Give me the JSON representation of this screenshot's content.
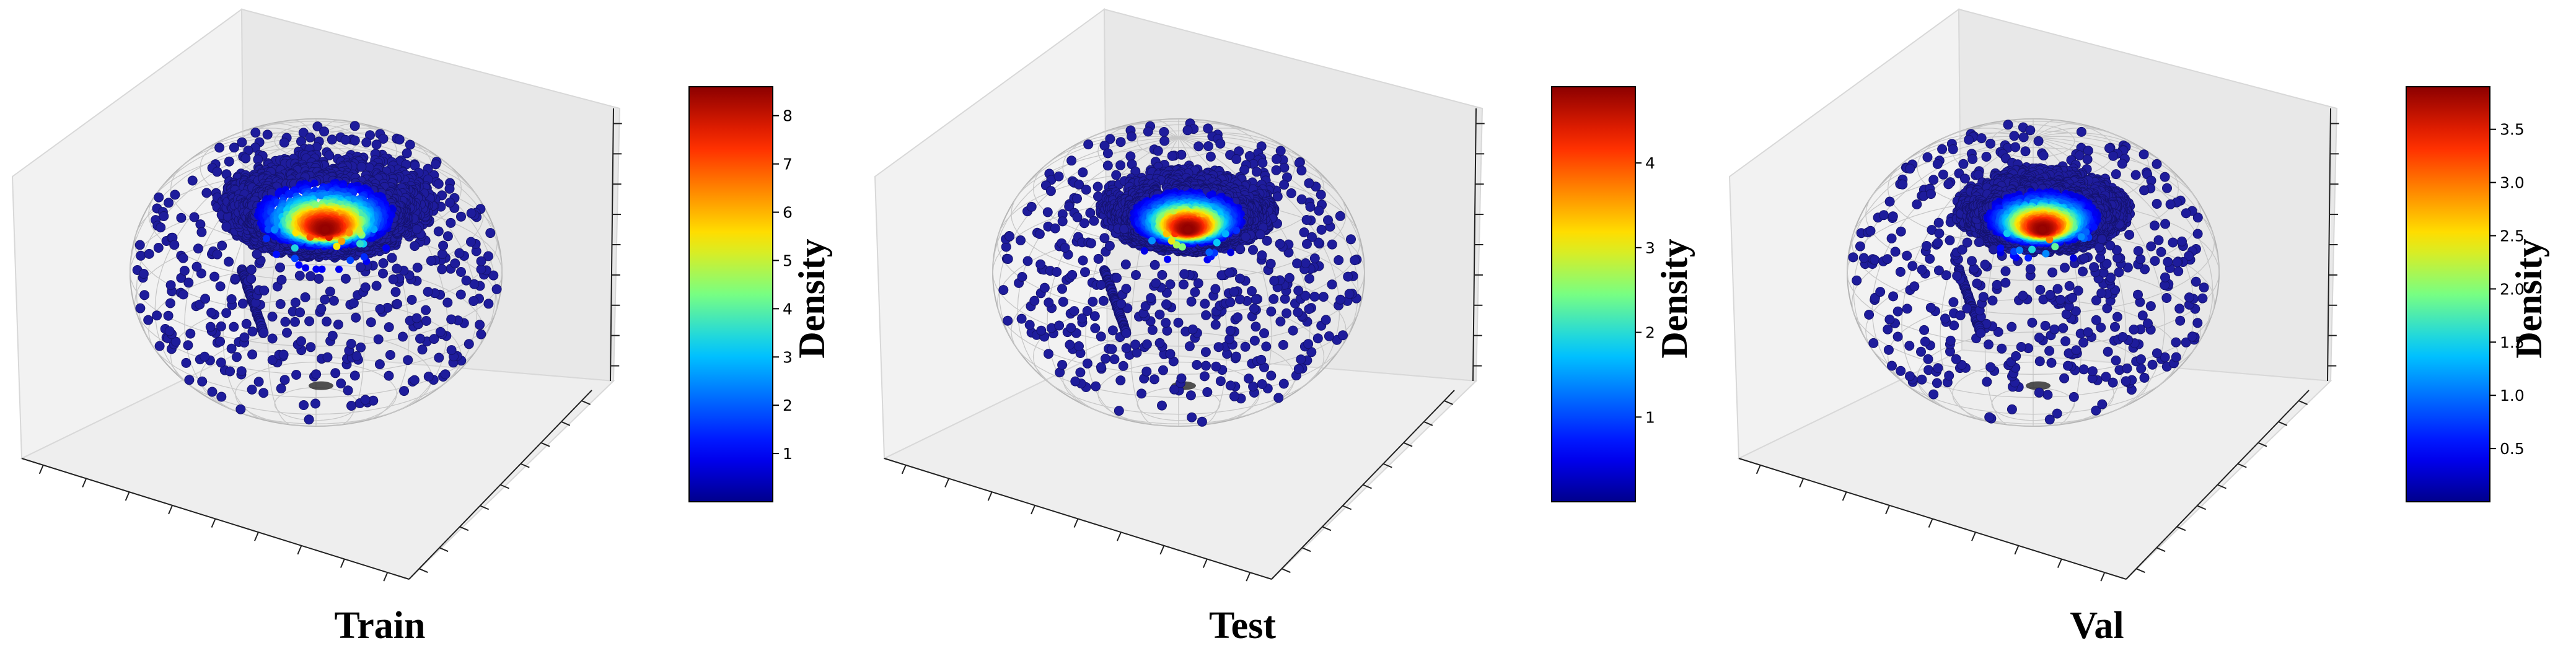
{
  "chart_data": [
    {
      "type": "scatter",
      "subtype": "3d-sphere-density",
      "title": "Train",
      "colorbar": {
        "label": "Density",
        "colormap": "jet",
        "range": [
          0,
          8.6
        ],
        "ticks": [
          "1",
          "2",
          "3",
          "4",
          "5",
          "6",
          "7",
          "8"
        ],
        "tick_values": [
          1,
          2,
          3,
          4,
          5,
          6,
          7,
          8
        ]
      },
      "peak_density": 8.5,
      "spread": 0.62,
      "grid": true,
      "colors": {
        "low": "#1d1ba0",
        "high": "#b01717"
      }
    },
    {
      "type": "scatter",
      "subtype": "3d-sphere-density",
      "title": "Test",
      "colorbar": {
        "label": "Density",
        "colormap": "jet",
        "range": [
          0,
          4.9
        ],
        "ticks": [
          "1",
          "2",
          "3",
          "4"
        ],
        "tick_values": [
          1,
          2,
          3,
          4
        ]
      },
      "peak_density": 4.85,
      "spread": 0.5,
      "grid": true,
      "colors": {
        "low": "#1d1ba0",
        "high": "#b01717"
      }
    },
    {
      "type": "scatter",
      "subtype": "3d-sphere-density",
      "title": "Val",
      "colorbar": {
        "label": "Density",
        "colormap": "jet",
        "range": [
          0,
          3.9
        ],
        "ticks": [
          "0.5",
          "1.0",
          "1.5",
          "2.0",
          "2.5",
          "3.0",
          "3.5"
        ],
        "tick_values": [
          0.5,
          1.0,
          1.5,
          2.0,
          2.5,
          3.0,
          3.5
        ]
      },
      "peak_density": 3.85,
      "spread": 0.5,
      "grid": true,
      "colors": {
        "low": "#1d1ba0",
        "high": "#b01717"
      }
    }
  ]
}
